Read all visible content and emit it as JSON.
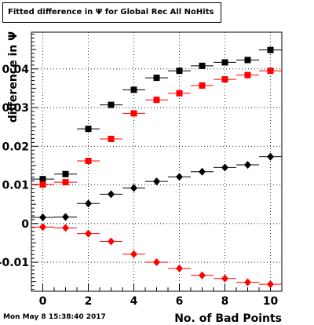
{
  "title": "Fitted difference in  Ψ  for Global Rec All NoHits",
  "timestamp": "Mon May  8 15:38:40 2017",
  "colors": {
    "series1": "#000000",
    "series2": "#ff0000",
    "series3": "#000000",
    "series4": "#ff0000"
  },
  "chart_data": {
    "type": "scatter",
    "xlabel": "No. of Bad Points",
    "ylabel": "difference in  Ψ",
    "xlim": [
      -0.5,
      10.5
    ],
    "ylim": [
      -0.0175,
      0.0495
    ],
    "grid": true,
    "x_ticks": [
      0,
      2,
      4,
      6,
      8,
      10
    ],
    "x_tick_labels": [
      "0",
      "2",
      "4",
      "6",
      "8",
      "10"
    ],
    "y_ticks": [
      -0.01,
      0,
      0.01,
      0.02,
      0.03,
      0.04
    ],
    "y_tick_labels": [
      "-0.01",
      "0",
      "0.01",
      "0.02",
      "0.03",
      "0.04"
    ],
    "x": [
      0,
      1,
      2,
      3,
      4,
      5,
      6,
      7,
      8,
      9,
      10
    ],
    "series": [
      {
        "marker": "square",
        "color": "#000000",
        "values": [
          0.0115,
          0.0128,
          0.0245,
          0.0307,
          0.0346,
          0.0377,
          0.0395,
          0.0408,
          0.0417,
          0.0423,
          0.0449
        ]
      },
      {
        "marker": "square",
        "color": "#ff0000",
        "values": [
          0.0101,
          0.0107,
          0.0162,
          0.0219,
          0.0285,
          0.032,
          0.0337,
          0.0357,
          0.0373,
          0.0384,
          0.0395
        ]
      },
      {
        "marker": "diamond",
        "color": "#000000",
        "values": [
          0.0016,
          0.0017,
          0.0052,
          0.0076,
          0.0092,
          0.0109,
          0.0121,
          0.0134,
          0.0145,
          0.0152,
          0.0173
        ]
      },
      {
        "marker": "diamond",
        "color": "#ff0000",
        "values": [
          -0.0009,
          -0.0011,
          -0.0026,
          -0.0046,
          -0.0079,
          -0.01,
          -0.0116,
          -0.0134,
          -0.0142,
          -0.0152,
          -0.0157
        ]
      }
    ]
  }
}
